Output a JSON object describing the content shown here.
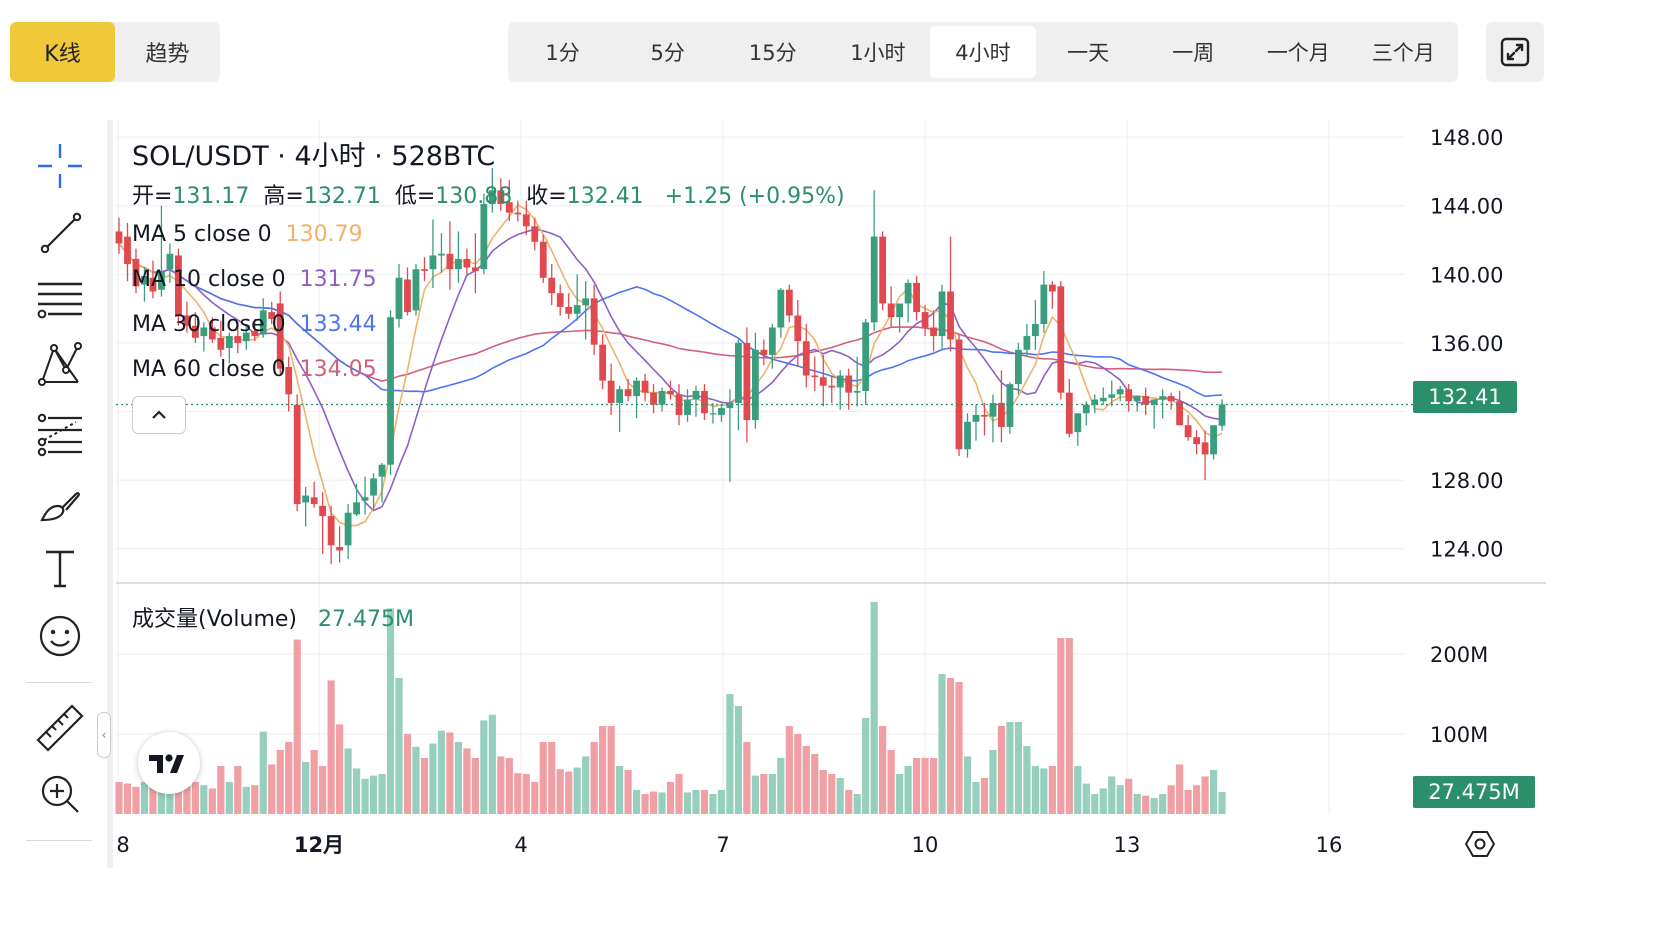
{
  "header": {
    "chart_type_tabs": [
      {
        "label": "K线",
        "active": true
      },
      {
        "label": "趋势",
        "active": false
      }
    ],
    "timeframes": [
      {
        "label": "1分",
        "active": false
      },
      {
        "label": "5分",
        "active": false
      },
      {
        "label": "15分",
        "active": false
      },
      {
        "label": "1小时",
        "active": false
      },
      {
        "label": "4小时",
        "active": true
      },
      {
        "label": "一天",
        "active": false
      },
      {
        "label": "一周",
        "active": false
      },
      {
        "label": "一个月",
        "active": false
      },
      {
        "label": "三个月",
        "active": false
      }
    ],
    "fullscreen_icon": "expand-icon"
  },
  "toolbar": {
    "tools": [
      "crosshair-icon",
      "trend-line-icon",
      "horizontal-lines-icon",
      "pattern-icon",
      "fib-icon",
      "brush-icon",
      "text-icon",
      "emoji-icon",
      "ruler-icon",
      "zoom-in-icon"
    ]
  },
  "legend": {
    "title": "SOL/USDT · 4小时 · 528BTC",
    "open_label": "开=",
    "open": "131.17",
    "high_label": "高=",
    "high": "132.71",
    "low_label": "低=",
    "low": "130.88",
    "close_label": "收=",
    "close": "132.41",
    "change": "+1.25 (+0.95%)",
    "ma": [
      {
        "label": "MA 5 close 0",
        "value": "130.79",
        "color": "#f0b26a"
      },
      {
        "label": "MA 10 close 0",
        "value": "131.75",
        "color": "#8e5fc7"
      },
      {
        "label": "MA 30 close 0",
        "value": "133.44",
        "color": "#4e74f0"
      },
      {
        "label": "MA 60 close 0",
        "value": "134.05",
        "color": "#d2607a"
      }
    ],
    "volume_label": "成交量(Volume)",
    "volume_value": "27.475M"
  },
  "axes": {
    "price_ticks": [
      "148.00",
      "144.00",
      "140.00",
      "136.00",
      "128.00",
      "124.00"
    ],
    "volume_ticks": [
      "200M",
      "100M"
    ],
    "last_price_tag": "132.41",
    "last_volume_tag": "27.475M",
    "time_ticks": [
      "8",
      "12月",
      "4",
      "7",
      "10",
      "13",
      "16"
    ]
  },
  "colors": {
    "up": "#3a9e7e",
    "down": "#e04a4e",
    "up_volume": "#96cfbd",
    "down_volume": "#f0a0a4",
    "last_price_tag": "#2a8f6a",
    "accent": "#f0c83a"
  },
  "chart_data": {
    "type": "candlestick",
    "timeframe": "4h",
    "ylim": [
      122,
      149
    ],
    "volume_ylim": [
      0,
      280000000
    ],
    "candles": [
      {
        "o": 142.5,
        "h": 143.3,
        "l": 141.2,
        "c": 141.8,
        "v": 40000000
      },
      {
        "o": 142.2,
        "h": 143.0,
        "l": 139.6,
        "c": 140.6,
        "v": 38000000
      },
      {
        "o": 140.9,
        "h": 141.5,
        "l": 138.9,
        "c": 139.3,
        "v": 34000000
      },
      {
        "o": 139.4,
        "h": 140.4,
        "l": 138.4,
        "c": 139.9,
        "v": 40000000
      },
      {
        "o": 139.8,
        "h": 140.8,
        "l": 138.6,
        "c": 139.0,
        "v": 44000000
      },
      {
        "o": 139.1,
        "h": 144.0,
        "l": 138.7,
        "c": 140.2,
        "v": 95000000
      },
      {
        "o": 140.3,
        "h": 141.8,
        "l": 139.5,
        "c": 141.2,
        "v": 85000000
      },
      {
        "o": 141.1,
        "h": 141.5,
        "l": 137.0,
        "c": 137.6,
        "v": 90000000
      },
      {
        "o": 137.6,
        "h": 138.4,
        "l": 136.6,
        "c": 137.0,
        "v": 35000000
      },
      {
        "o": 137.0,
        "h": 137.8,
        "l": 136.0,
        "c": 136.3,
        "v": 40000000
      },
      {
        "o": 136.4,
        "h": 137.2,
        "l": 135.5,
        "c": 136.9,
        "v": 36000000
      },
      {
        "o": 136.9,
        "h": 137.5,
        "l": 136.0,
        "c": 136.2,
        "v": 32000000
      },
      {
        "o": 136.3,
        "h": 137.3,
        "l": 135.2,
        "c": 135.6,
        "v": 60000000
      },
      {
        "o": 135.7,
        "h": 136.6,
        "l": 134.8,
        "c": 136.4,
        "v": 40000000
      },
      {
        "o": 136.4,
        "h": 137.2,
        "l": 135.4,
        "c": 136.0,
        "v": 60000000
      },
      {
        "o": 136.1,
        "h": 137.0,
        "l": 135.6,
        "c": 136.6,
        "v": 34000000
      },
      {
        "o": 136.7,
        "h": 137.4,
        "l": 136.1,
        "c": 136.4,
        "v": 36000000
      },
      {
        "o": 136.5,
        "h": 138.6,
        "l": 136.3,
        "c": 137.9,
        "v": 103000000
      },
      {
        "o": 137.8,
        "h": 138.4,
        "l": 137.1,
        "c": 137.4,
        "v": 62000000
      },
      {
        "o": 138.3,
        "h": 139.0,
        "l": 134.2,
        "c": 134.5,
        "v": 80000000
      },
      {
        "o": 134.6,
        "h": 135.2,
        "l": 132.0,
        "c": 133.0,
        "v": 90000000
      },
      {
        "o": 132.4,
        "h": 133.0,
        "l": 126.2,
        "c": 126.6,
        "v": 218000000
      },
      {
        "o": 126.7,
        "h": 127.6,
        "l": 125.3,
        "c": 127.1,
        "v": 65000000
      },
      {
        "o": 127.0,
        "h": 127.9,
        "l": 126.4,
        "c": 126.6,
        "v": 80000000
      },
      {
        "o": 126.5,
        "h": 127.3,
        "l": 123.7,
        "c": 125.9,
        "v": 60000000
      },
      {
        "o": 125.9,
        "h": 126.5,
        "l": 123.1,
        "c": 124.2,
        "v": 167000000
      },
      {
        "o": 124.1,
        "h": 125.3,
        "l": 123.2,
        "c": 123.9,
        "v": 112000000
      },
      {
        "o": 124.2,
        "h": 126.6,
        "l": 123.4,
        "c": 126.1,
        "v": 82000000
      },
      {
        "o": 126.0,
        "h": 127.8,
        "l": 125.9,
        "c": 126.7,
        "v": 57000000
      },
      {
        "o": 126.8,
        "h": 128.2,
        "l": 126.0,
        "c": 127.0,
        "v": 44000000
      },
      {
        "o": 127.1,
        "h": 128.4,
        "l": 126.2,
        "c": 128.1,
        "v": 48000000
      },
      {
        "o": 128.2,
        "h": 129.0,
        "l": 126.7,
        "c": 128.9,
        "v": 50000000
      },
      {
        "o": 128.9,
        "h": 137.9,
        "l": 128.3,
        "c": 137.5,
        "v": 257000000
      },
      {
        "o": 137.4,
        "h": 140.6,
        "l": 136.9,
        "c": 139.8,
        "v": 170000000
      },
      {
        "o": 139.7,
        "h": 140.4,
        "l": 137.6,
        "c": 137.8,
        "v": 100000000
      },
      {
        "o": 137.9,
        "h": 140.6,
        "l": 137.6,
        "c": 140.3,
        "v": 84000000
      },
      {
        "o": 140.3,
        "h": 141.0,
        "l": 139.6,
        "c": 140.2,
        "v": 70000000
      },
      {
        "o": 140.3,
        "h": 143.2,
        "l": 139.2,
        "c": 141.1,
        "v": 88000000
      },
      {
        "o": 141.1,
        "h": 142.4,
        "l": 140.1,
        "c": 141.2,
        "v": 104000000
      },
      {
        "o": 141.2,
        "h": 143.1,
        "l": 139.1,
        "c": 140.3,
        "v": 102000000
      },
      {
        "o": 140.3,
        "h": 142.5,
        "l": 139.5,
        "c": 140.9,
        "v": 90000000
      },
      {
        "o": 140.9,
        "h": 141.5,
        "l": 140.0,
        "c": 140.4,
        "v": 82000000
      },
      {
        "o": 140.4,
        "h": 142.4,
        "l": 138.9,
        "c": 140.2,
        "v": 70000000
      },
      {
        "o": 140.3,
        "h": 144.7,
        "l": 140.0,
        "c": 144.1,
        "v": 117000000
      },
      {
        "o": 144.1,
        "h": 146.2,
        "l": 143.6,
        "c": 144.9,
        "v": 124000000
      },
      {
        "o": 144.9,
        "h": 145.6,
        "l": 143.7,
        "c": 144.1,
        "v": 72000000
      },
      {
        "o": 144.2,
        "h": 145.5,
        "l": 143.1,
        "c": 143.6,
        "v": 70000000
      },
      {
        "o": 143.6,
        "h": 144.3,
        "l": 143.1,
        "c": 143.5,
        "v": 51000000
      },
      {
        "o": 143.5,
        "h": 144.3,
        "l": 142.3,
        "c": 142.8,
        "v": 50000000
      },
      {
        "o": 142.8,
        "h": 143.3,
        "l": 141.4,
        "c": 141.9,
        "v": 40000000
      },
      {
        "o": 141.9,
        "h": 142.3,
        "l": 139.5,
        "c": 139.8,
        "v": 90000000
      },
      {
        "o": 139.8,
        "h": 140.6,
        "l": 138.2,
        "c": 138.9,
        "v": 90000000
      },
      {
        "o": 138.9,
        "h": 139.4,
        "l": 137.6,
        "c": 138.1,
        "v": 56000000
      },
      {
        "o": 138.1,
        "h": 138.9,
        "l": 137.4,
        "c": 137.7,
        "v": 53000000
      },
      {
        "o": 137.7,
        "h": 140.0,
        "l": 137.3,
        "c": 138.2,
        "v": 58000000
      },
      {
        "o": 138.2,
        "h": 139.6,
        "l": 136.2,
        "c": 138.6,
        "v": 72000000
      },
      {
        "o": 138.6,
        "h": 139.4,
        "l": 135.3,
        "c": 135.9,
        "v": 90000000
      },
      {
        "o": 135.9,
        "h": 136.5,
        "l": 133.3,
        "c": 133.8,
        "v": 110000000
      },
      {
        "o": 133.8,
        "h": 134.8,
        "l": 131.8,
        "c": 132.5,
        "v": 110000000
      },
      {
        "o": 132.5,
        "h": 133.5,
        "l": 130.8,
        "c": 133.3,
        "v": 60000000
      },
      {
        "o": 133.3,
        "h": 133.9,
        "l": 132.6,
        "c": 132.9,
        "v": 55000000
      },
      {
        "o": 132.9,
        "h": 134.0,
        "l": 131.6,
        "c": 133.8,
        "v": 30000000
      },
      {
        "o": 133.8,
        "h": 134.2,
        "l": 132.6,
        "c": 133.1,
        "v": 25000000
      },
      {
        "o": 133.1,
        "h": 133.6,
        "l": 131.9,
        "c": 132.4,
        "v": 28000000
      },
      {
        "o": 132.4,
        "h": 133.4,
        "l": 132.0,
        "c": 133.2,
        "v": 27000000
      },
      {
        "o": 133.2,
        "h": 133.8,
        "l": 132.7,
        "c": 133.0,
        "v": 40000000
      },
      {
        "o": 133.0,
        "h": 133.6,
        "l": 131.2,
        "c": 131.8,
        "v": 50000000
      },
      {
        "o": 131.8,
        "h": 133.3,
        "l": 131.4,
        "c": 132.7,
        "v": 27000000
      },
      {
        "o": 132.7,
        "h": 133.5,
        "l": 131.7,
        "c": 133.2,
        "v": 30000000
      },
      {
        "o": 133.2,
        "h": 133.6,
        "l": 131.5,
        "c": 131.9,
        "v": 30000000
      },
      {
        "o": 131.9,
        "h": 132.5,
        "l": 131.3,
        "c": 131.9,
        "v": 25000000
      },
      {
        "o": 131.8,
        "h": 132.4,
        "l": 131.4,
        "c": 132.2,
        "v": 30000000
      },
      {
        "o": 132.2,
        "h": 133.3,
        "l": 127.9,
        "c": 132.5,
        "v": 150000000
      },
      {
        "o": 132.5,
        "h": 136.2,
        "l": 130.9,
        "c": 136.0,
        "v": 135000000
      },
      {
        "o": 136.0,
        "h": 136.9,
        "l": 130.2,
        "c": 131.5,
        "v": 90000000
      },
      {
        "o": 131.5,
        "h": 136.6,
        "l": 131.0,
        "c": 135.6,
        "v": 48000000
      },
      {
        "o": 135.6,
        "h": 136.2,
        "l": 134.7,
        "c": 135.3,
        "v": 50000000
      },
      {
        "o": 135.3,
        "h": 137.1,
        "l": 134.5,
        "c": 136.9,
        "v": 50000000
      },
      {
        "o": 136.9,
        "h": 139.2,
        "l": 136.3,
        "c": 139.1,
        "v": 70000000
      },
      {
        "o": 139.1,
        "h": 139.4,
        "l": 137.2,
        "c": 137.6,
        "v": 110000000
      },
      {
        "o": 137.6,
        "h": 138.5,
        "l": 134.6,
        "c": 136.1,
        "v": 100000000
      },
      {
        "o": 136.1,
        "h": 137.1,
        "l": 133.4,
        "c": 134.1,
        "v": 85000000
      },
      {
        "o": 134.1,
        "h": 135.2,
        "l": 133.2,
        "c": 134.0,
        "v": 75000000
      },
      {
        "o": 134.0,
        "h": 135.3,
        "l": 132.3,
        "c": 133.5,
        "v": 55000000
      },
      {
        "o": 133.5,
        "h": 134.1,
        "l": 132.5,
        "c": 133.4,
        "v": 50000000
      },
      {
        "o": 133.4,
        "h": 134.4,
        "l": 132.1,
        "c": 134.1,
        "v": 45000000
      },
      {
        "o": 134.1,
        "h": 134.5,
        "l": 132.1,
        "c": 133.1,
        "v": 30000000
      },
      {
        "o": 133.1,
        "h": 135.2,
        "l": 132.3,
        "c": 133.2,
        "v": 25000000
      },
      {
        "o": 133.2,
        "h": 137.4,
        "l": 132.4,
        "c": 137.2,
        "v": 120000000
      },
      {
        "o": 137.2,
        "h": 144.9,
        "l": 136.7,
        "c": 142.2,
        "v": 265000000
      },
      {
        "o": 142.2,
        "h": 142.5,
        "l": 137.9,
        "c": 138.3,
        "v": 110000000
      },
      {
        "o": 138.3,
        "h": 139.3,
        "l": 136.9,
        "c": 137.5,
        "v": 80000000
      },
      {
        "o": 137.5,
        "h": 138.3,
        "l": 136.6,
        "c": 138.3,
        "v": 50000000
      },
      {
        "o": 138.3,
        "h": 139.7,
        "l": 137.2,
        "c": 139.5,
        "v": 60000000
      },
      {
        "o": 139.5,
        "h": 139.9,
        "l": 137.3,
        "c": 137.8,
        "v": 70000000
      },
      {
        "o": 137.8,
        "h": 138.2,
        "l": 136.4,
        "c": 136.9,
        "v": 70000000
      },
      {
        "o": 136.9,
        "h": 137.9,
        "l": 135.5,
        "c": 136.4,
        "v": 70000000
      },
      {
        "o": 136.4,
        "h": 139.4,
        "l": 135.6,
        "c": 139.0,
        "v": 175000000
      },
      {
        "o": 139.0,
        "h": 142.2,
        "l": 135.5,
        "c": 136.2,
        "v": 170000000
      },
      {
        "o": 136.2,
        "h": 136.5,
        "l": 129.4,
        "c": 129.8,
        "v": 165000000
      },
      {
        "o": 129.8,
        "h": 131.9,
        "l": 129.3,
        "c": 131.4,
        "v": 72000000
      },
      {
        "o": 131.4,
        "h": 132.4,
        "l": 130.3,
        "c": 131.8,
        "v": 40000000
      },
      {
        "o": 131.8,
        "h": 132.5,
        "l": 130.6,
        "c": 131.7,
        "v": 45000000
      },
      {
        "o": 131.7,
        "h": 133.0,
        "l": 130.2,
        "c": 132.5,
        "v": 80000000
      },
      {
        "o": 132.5,
        "h": 134.4,
        "l": 130.2,
        "c": 131.1,
        "v": 110000000
      },
      {
        "o": 131.1,
        "h": 133.7,
        "l": 130.7,
        "c": 133.6,
        "v": 115000000
      },
      {
        "o": 133.6,
        "h": 136.0,
        "l": 133.0,
        "c": 135.6,
        "v": 115000000
      },
      {
        "o": 135.6,
        "h": 137.1,
        "l": 135.2,
        "c": 136.4,
        "v": 85000000
      },
      {
        "o": 136.4,
        "h": 138.5,
        "l": 135.6,
        "c": 137.1,
        "v": 60000000
      },
      {
        "o": 137.1,
        "h": 140.2,
        "l": 136.6,
        "c": 139.4,
        "v": 57000000
      },
      {
        "o": 139.4,
        "h": 139.6,
        "l": 138.0,
        "c": 139.0,
        "v": 60000000
      },
      {
        "o": 139.3,
        "h": 139.6,
        "l": 132.7,
        "c": 133.1,
        "v": 220000000
      },
      {
        "o": 133.1,
        "h": 133.9,
        "l": 130.5,
        "c": 130.7,
        "v": 220000000
      },
      {
        "o": 130.8,
        "h": 131.8,
        "l": 130.0,
        "c": 131.9,
        "v": 60000000
      },
      {
        "o": 131.9,
        "h": 132.6,
        "l": 131.2,
        "c": 132.4,
        "v": 38000000
      },
      {
        "o": 132.4,
        "h": 133.0,
        "l": 131.9,
        "c": 132.7,
        "v": 25000000
      },
      {
        "o": 132.6,
        "h": 133.4,
        "l": 132.4,
        "c": 132.8,
        "v": 32000000
      },
      {
        "o": 132.8,
        "h": 133.8,
        "l": 132.3,
        "c": 133.0,
        "v": 47000000
      },
      {
        "o": 133.0,
        "h": 133.5,
        "l": 132.6,
        "c": 133.3,
        "v": 36000000
      },
      {
        "o": 133.3,
        "h": 133.6,
        "l": 132.0,
        "c": 132.6,
        "v": 44000000
      },
      {
        "o": 132.6,
        "h": 132.9,
        "l": 132.0,
        "c": 132.9,
        "v": 25000000
      },
      {
        "o": 132.9,
        "h": 133.4,
        "l": 131.8,
        "c": 132.4,
        "v": 23000000
      },
      {
        "o": 132.4,
        "h": 132.6,
        "l": 131.0,
        "c": 132.7,
        "v": 20000000
      },
      {
        "o": 132.7,
        "h": 133.3,
        "l": 131.6,
        "c": 132.9,
        "v": 25000000
      },
      {
        "o": 132.9,
        "h": 133.1,
        "l": 132.1,
        "c": 132.6,
        "v": 36000000
      },
      {
        "o": 132.6,
        "h": 133.2,
        "l": 131.2,
        "c": 131.2,
        "v": 62000000
      },
      {
        "o": 131.2,
        "h": 131.8,
        "l": 130.3,
        "c": 130.5,
        "v": 30000000
      },
      {
        "o": 130.5,
        "h": 130.9,
        "l": 129.5,
        "c": 130.1,
        "v": 36000000
      },
      {
        "o": 130.2,
        "h": 130.9,
        "l": 128.0,
        "c": 129.5,
        "v": 47000000
      },
      {
        "o": 129.5,
        "h": 131.1,
        "l": 129.2,
        "c": 131.2,
        "v": 55000000
      },
      {
        "o": 131.17,
        "h": 132.71,
        "l": 130.88,
        "c": 132.41,
        "v": 27475000
      }
    ]
  }
}
